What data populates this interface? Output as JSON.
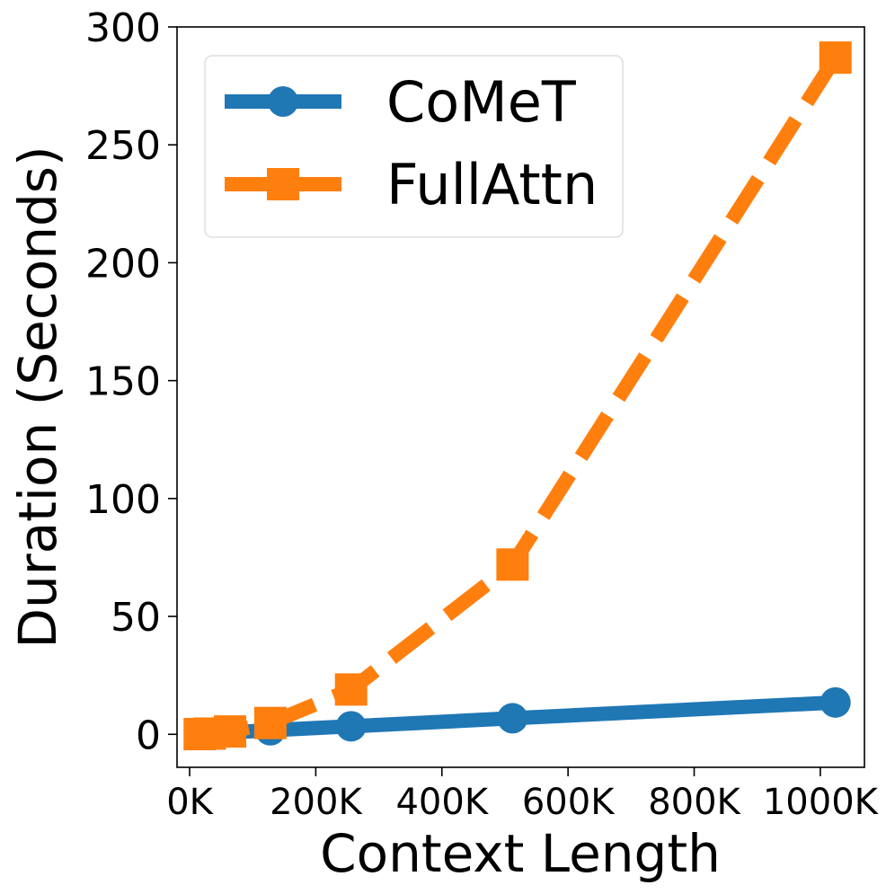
{
  "chart_data": {
    "type": "line",
    "xlabel": "Context Length",
    "ylabel": "Duration (Seconds)",
    "xlim": [
      -20000,
      1070000
    ],
    "ylim": [
      -14,
      300
    ],
    "xticks": [
      0,
      200000,
      400000,
      600000,
      800000,
      1000000
    ],
    "xtick_labels": [
      "0K",
      "200K",
      "400K",
      "600K",
      "800K",
      "1000K"
    ],
    "yticks": [
      0,
      50,
      100,
      150,
      200,
      250,
      300
    ],
    "ytick_labels": [
      "0",
      "50",
      "100",
      "150",
      "200",
      "250",
      "300"
    ],
    "grid": false,
    "legend_position": "top-left",
    "series": [
      {
        "name": "CoMeT",
        "color": "#1f77b4",
        "marker": "circle",
        "line_style": "solid",
        "x": [
          16000,
          32000,
          64000,
          128000,
          256000,
          512000,
          1024000
        ],
        "y": [
          0.2,
          0.4,
          0.8,
          1.7,
          3.4,
          6.8,
          13.5
        ]
      },
      {
        "name": "FullAttn",
        "color": "#ff7f0e",
        "marker": "square",
        "line_style": "dashed",
        "x": [
          16000,
          32000,
          64000,
          128000,
          256000,
          512000,
          1024000
        ],
        "y": [
          0.1,
          0.3,
          1.2,
          4.8,
          19,
          72,
          287
        ]
      }
    ]
  }
}
